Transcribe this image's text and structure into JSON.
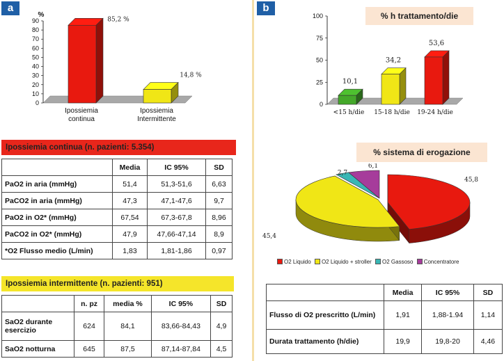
{
  "panel_a": {
    "tag": "a",
    "table1": {
      "title": "Ipossiemia continua (n. pazienti: 5.354)",
      "title_color": "#e8261b",
      "headers": [
        "",
        "Media",
        "IC 95%",
        "SD"
      ],
      "rows": [
        [
          "PaO2 in aria  (mmHg)",
          "51,4",
          "51,3-51,6",
          "6,63"
        ],
        [
          "PaCO2 in aria (mmHg)",
          "47,3",
          "47,1-47,6",
          "9,7"
        ],
        [
          "PaO2 in O2* (mmHg)",
          "67,54",
          "67,3-67,8",
          "8,96"
        ],
        [
          "PaCO2 in O2* (mmHg)",
          "47,9",
          "47,66-47,14",
          "8,9"
        ],
        [
          "*O2 Flusso medio (L/min)",
          "1,83",
          "1,81-1,86",
          "0,97"
        ]
      ]
    },
    "table2": {
      "title": "Ipossiemia intermittente (n. pazienti: 951)",
      "title_color": "#f5e52a",
      "headers": [
        "",
        "n. pz",
        "media %",
        "IC 95%",
        "SD"
      ],
      "rows": [
        [
          "SaO2 durante esercizio",
          "624",
          "84,1",
          "83,66-84,43",
          "4,9"
        ],
        [
          "SaO2 notturna",
          "645",
          "87,5",
          "87,14-87,84",
          "4,5"
        ]
      ]
    }
  },
  "panel_b": {
    "tag": "b",
    "table": {
      "headers": [
        "",
        "Media",
        "IC 95%",
        "SD"
      ],
      "rows": [
        [
          "Flusso di O2 prescritto (L/min)",
          "1,91",
          "1,88-1.94",
          "1,14"
        ],
        [
          "Durata trattamento (h/die)",
          "19,9",
          "19,8-20",
          "4,46"
        ]
      ]
    }
  },
  "chart_data": [
    {
      "type": "bar",
      "title": "",
      "ylabel": "%",
      "ylim": [
        0,
        90
      ],
      "yticks": [
        0,
        10,
        20,
        30,
        40,
        50,
        60,
        70,
        80,
        90
      ],
      "categories": [
        "Ipossiemia continua",
        "Ipossiemia Intermittente"
      ],
      "values": [
        85.2,
        14.8
      ],
      "value_labels": [
        "85,2 %",
        "14,8 %"
      ],
      "colors": [
        "#e8190f",
        "#f0e616"
      ],
      "style": "3d"
    },
    {
      "type": "bar",
      "title": "% h trattamento/die",
      "ylim": [
        0,
        100
      ],
      "yticks": [
        0,
        25,
        50,
        75,
        100
      ],
      "categories": [
        "<15 h/die",
        "15-18 h/die",
        "19-24 h/die"
      ],
      "values": [
        10.1,
        34.2,
        53.6
      ],
      "value_labels": [
        "10,1",
        "34,2",
        "53,6"
      ],
      "colors": [
        "#44a82a",
        "#f0e616",
        "#e8190f"
      ],
      "style": "3d"
    },
    {
      "type": "pie",
      "title": "% sistema di erogazione",
      "categories": [
        "O2 Liquido",
        "O2 Liquido + stroller",
        "O2 Gassoso",
        "Concentratore"
      ],
      "values": [
        45.8,
        45.4,
        2.7,
        6.1
      ],
      "value_labels": [
        "45,8",
        "45,4",
        "2,7",
        "6,1"
      ],
      "colors": [
        "#e8190f",
        "#f0e616",
        "#39b7b5",
        "#a63c9b"
      ],
      "legend": "bottom",
      "style": "3d"
    }
  ]
}
